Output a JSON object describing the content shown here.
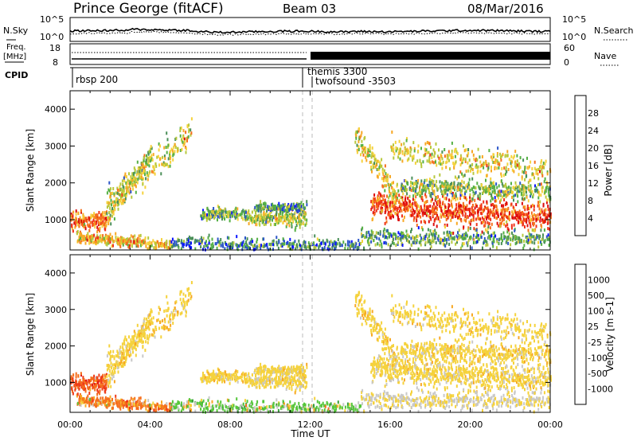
{
  "header": {
    "station": "Prince George (fitACF)",
    "beam": "Beam 03",
    "date": "08/Mar/2016"
  },
  "noise_panel": {
    "left_label": "N.Sky",
    "right_label": "N.Search",
    "left_ticks": [
      "10^5",
      "10^0"
    ],
    "right_ticks": [
      "10^5",
      "10^0"
    ]
  },
  "freq_panel": {
    "left_label_1": "Freq.",
    "left_label_2": "[MHz]",
    "right_label": "Nave",
    "left_ticks": [
      "18",
      "8"
    ],
    "right_ticks": [
      "60",
      "0"
    ]
  },
  "cpid": {
    "label": "CPID",
    "programs": [
      {
        "name": "rbsp 200",
        "start_hour": 0.0
      },
      {
        "name": "themis 3300",
        "start_hour": 11.5
      },
      {
        "name": "twofsound -3503",
        "start_hour": 12.0
      }
    ]
  },
  "axes": {
    "ylabel": "Slant Range [km]",
    "xlabel": "Time UT",
    "x_ticks": [
      "00:00",
      "04:00",
      "08:00",
      "12:00",
      "16:00",
      "20:00",
      "00:00"
    ],
    "y_ticks": [
      "1000",
      "2000",
      "3000",
      "4000"
    ],
    "xlim_hours": [
      0,
      24
    ],
    "ylim_km": [
      180,
      4500
    ]
  },
  "colorbars": {
    "power": {
      "label": "Power [dB]",
      "ticks": [
        "4",
        "8",
        "12",
        "16",
        "20",
        "24",
        "28"
      ],
      "colors": [
        "#0a14ff",
        "#2c56c9",
        "#4a8f58",
        "#55b044",
        "#b7c83c",
        "#f5d23c",
        "#f7a824",
        "#f56f1d",
        "#f03219",
        "#dc0c0c"
      ]
    },
    "velocity": {
      "label": "Velocity [m s-1]",
      "ticks": [
        "1000",
        "500",
        "100",
        "25",
        "-25",
        "-100",
        "-500",
        "-1000"
      ],
      "colors": [
        "#1f3bc6",
        "#2a7f56",
        "#3aa03a",
        "#55c63a",
        "#c8c8c8",
        "#f5d23c",
        "#f7a824",
        "#f56f1d",
        "#ee3b18",
        "#e00c0c"
      ]
    }
  },
  "chart_data": {
    "type": "heatmap",
    "title": "Prince George (fitACF)",
    "xlabel": "Time UT",
    "ylabel": "Slant Range [km]",
    "xlim": [
      0,
      24
    ],
    "ylim": [
      180,
      4500
    ],
    "scatter_features": [
      {
        "name": "band_early",
        "t0": 0.0,
        "t1": 1.8,
        "r0": 950,
        "r1": 1000,
        "sigma": 120,
        "p": 0.9,
        "power": 25,
        "velocity": -300
      },
      {
        "name": "rise_early",
        "t0": 1.8,
        "t1": 4.0,
        "r0": 1000,
        "r1": 2800,
        "sigma": 130,
        "p": 0.85,
        "power": 16,
        "velocity": 0
      },
      {
        "name": "rise_upper",
        "t0": 1.8,
        "t1": 6.0,
        "r0": 1500,
        "r1": 3300,
        "sigma": 200,
        "p": 0.55,
        "power": 17,
        "velocity": 0
      },
      {
        "name": "near_range_early",
        "t0": 0.3,
        "t1": 5.0,
        "r0": 520,
        "r1": 300,
        "sigma": 70,
        "p": 0.7,
        "power": 20,
        "velocity": -150
      },
      {
        "name": "mid_block_1",
        "t0": 6.5,
        "t1": 8.8,
        "r0": 1150,
        "r1": 1150,
        "sigma": 80,
        "p": 0.75,
        "power": 13,
        "velocity": 0
      },
      {
        "name": "mid_block_2",
        "t0": 8.8,
        "t1": 11.8,
        "r0": 1050,
        "r1": 1050,
        "sigma": 110,
        "p": 0.85,
        "power": 16,
        "velocity": 10
      },
      {
        "name": "mid_block_upper",
        "t0": 9.2,
        "t1": 11.8,
        "r0": 1330,
        "r1": 1330,
        "sigma": 60,
        "p": 0.7,
        "power": 10,
        "velocity": 0
      },
      {
        "name": "near_range_mid",
        "t0": 5.0,
        "t1": 14.5,
        "r0": 350,
        "r1": 300,
        "sigma": 90,
        "p": 0.45,
        "power": 9,
        "velocity": 150
      },
      {
        "name": "fall_late",
        "t0": 14.2,
        "t1": 16.5,
        "r0": 3300,
        "r1": 1500,
        "sigma": 170,
        "p": 0.8,
        "power": 18,
        "velocity": 0
      },
      {
        "name": "band_late",
        "t0": 15.0,
        "t1": 24.0,
        "r0": 1350,
        "r1": 1100,
        "sigma": 200,
        "p": 0.95,
        "power": 27,
        "velocity": 5
      },
      {
        "name": "band_late_upper",
        "t0": 16.5,
        "t1": 24.0,
        "r0": 1900,
        "r1": 1750,
        "sigma": 130,
        "p": 0.7,
        "power": 14,
        "velocity": 0
      },
      {
        "name": "late_high",
        "t0": 16.0,
        "t1": 24.0,
        "r0": 2900,
        "r1": 2300,
        "sigma": 180,
        "p": 0.45,
        "power": 18,
        "velocity": 0
      },
      {
        "name": "near_range_late",
        "t0": 14.5,
        "t1": 24.0,
        "r0": 500,
        "r1": 500,
        "sigma": 120,
        "p": 0.5,
        "power": 12,
        "velocity": 30
      }
    ]
  }
}
